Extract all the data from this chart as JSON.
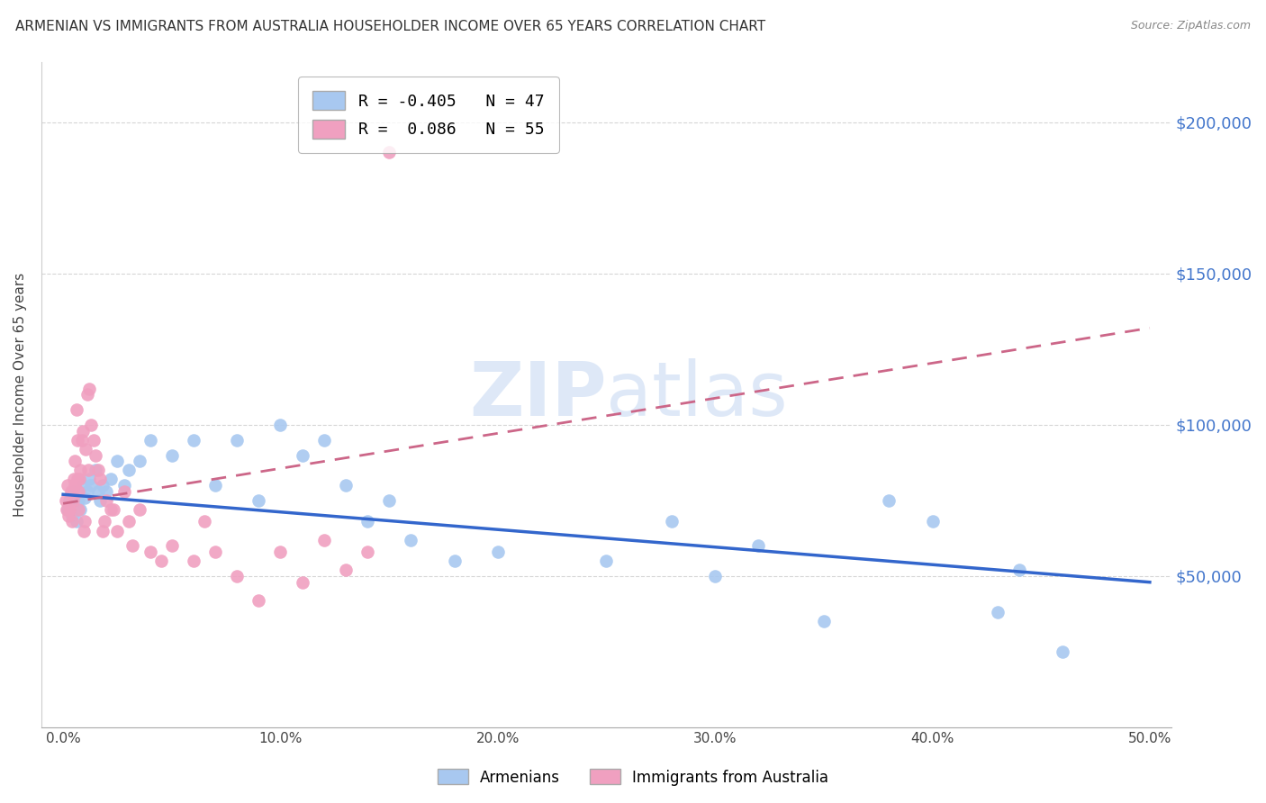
{
  "title": "ARMENIAN VS IMMIGRANTS FROM AUSTRALIA HOUSEHOLDER INCOME OVER 65 YEARS CORRELATION CHART",
  "source": "Source: ZipAtlas.com",
  "ylabel": "Householder Income Over 65 years",
  "xlabel_ticks": [
    "0.0%",
    "10.0%",
    "20.0%",
    "30.0%",
    "40.0%",
    "50.0%"
  ],
  "xlabel_vals": [
    0.0,
    10.0,
    20.0,
    30.0,
    40.0,
    50.0
  ],
  "ylabel_ticks": [
    50000,
    100000,
    150000,
    200000
  ],
  "ylabel_labels": [
    "$50,000",
    "$100,000",
    "$150,000",
    "$200,000"
  ],
  "xlim": [
    -1.0,
    51.0
  ],
  "ylim": [
    0,
    220000
  ],
  "legend1_label": "Armenians",
  "legend2_label": "Immigrants from Australia",
  "R1": -0.405,
  "N1": 47,
  "R2": 0.086,
  "N2": 55,
  "blue_color": "#A8C8F0",
  "pink_color": "#F0A0C0",
  "blue_line_color": "#3366CC",
  "pink_line_color": "#CC6688",
  "watermark_color": "#D0DFF5",
  "bg_color": "#FFFFFF",
  "grid_color": "#BBBBBB",
  "blue_x": [
    0.2,
    0.3,
    0.4,
    0.5,
    0.6,
    0.7,
    0.8,
    0.9,
    1.0,
    1.1,
    1.2,
    1.3,
    1.5,
    1.6,
    1.7,
    1.8,
    2.0,
    2.2,
    2.5,
    2.8,
    3.0,
    3.5,
    4.0,
    5.0,
    6.0,
    7.0,
    8.0,
    9.0,
    10.0,
    11.0,
    12.0,
    13.0,
    14.0,
    15.0,
    16.0,
    18.0,
    20.0,
    25.0,
    28.0,
    30.0,
    32.0,
    35.0,
    38.0,
    40.0,
    44.0,
    46.0,
    43.0
  ],
  "blue_y": [
    72000,
    75000,
    70000,
    78000,
    68000,
    75000,
    72000,
    80000,
    76000,
    78000,
    82000,
    80000,
    85000,
    78000,
    75000,
    80000,
    78000,
    82000,
    88000,
    80000,
    85000,
    88000,
    95000,
    90000,
    95000,
    80000,
    95000,
    75000,
    100000,
    90000,
    95000,
    80000,
    68000,
    75000,
    62000,
    55000,
    58000,
    55000,
    68000,
    50000,
    60000,
    35000,
    75000,
    68000,
    52000,
    25000,
    38000
  ],
  "pink_x": [
    0.1,
    0.15,
    0.2,
    0.25,
    0.3,
    0.35,
    0.4,
    0.45,
    0.5,
    0.55,
    0.6,
    0.65,
    0.7,
    0.75,
    0.8,
    0.85,
    0.9,
    0.95,
    1.0,
    1.1,
    1.2,
    1.3,
    1.4,
    1.5,
    1.6,
    1.7,
    1.8,
    2.0,
    2.2,
    2.5,
    2.8,
    3.0,
    3.5,
    4.0,
    5.0,
    6.0,
    7.0,
    8.0,
    9.0,
    10.0,
    11.0,
    12.0,
    13.0,
    14.0,
    15.0,
    3.2,
    4.5,
    6.5,
    2.3,
    1.9,
    0.55,
    0.65,
    0.72,
    1.05,
    1.15
  ],
  "pink_y": [
    75000,
    72000,
    80000,
    70000,
    72000,
    78000,
    68000,
    75000,
    82000,
    80000,
    105000,
    95000,
    72000,
    82000,
    85000,
    95000,
    98000,
    65000,
    68000,
    110000,
    112000,
    100000,
    95000,
    90000,
    85000,
    82000,
    65000,
    75000,
    72000,
    65000,
    78000,
    68000,
    72000,
    58000,
    60000,
    55000,
    58000,
    50000,
    42000,
    58000,
    48000,
    62000,
    52000,
    58000,
    190000,
    60000,
    55000,
    68000,
    72000,
    68000,
    88000,
    82000,
    78000,
    92000,
    85000
  ],
  "blue_line_x": [
    0.0,
    50.0
  ],
  "blue_line_y": [
    77000,
    48000
  ],
  "pink_line_x": [
    0.0,
    50.0
  ],
  "pink_line_y": [
    74000,
    132000
  ]
}
